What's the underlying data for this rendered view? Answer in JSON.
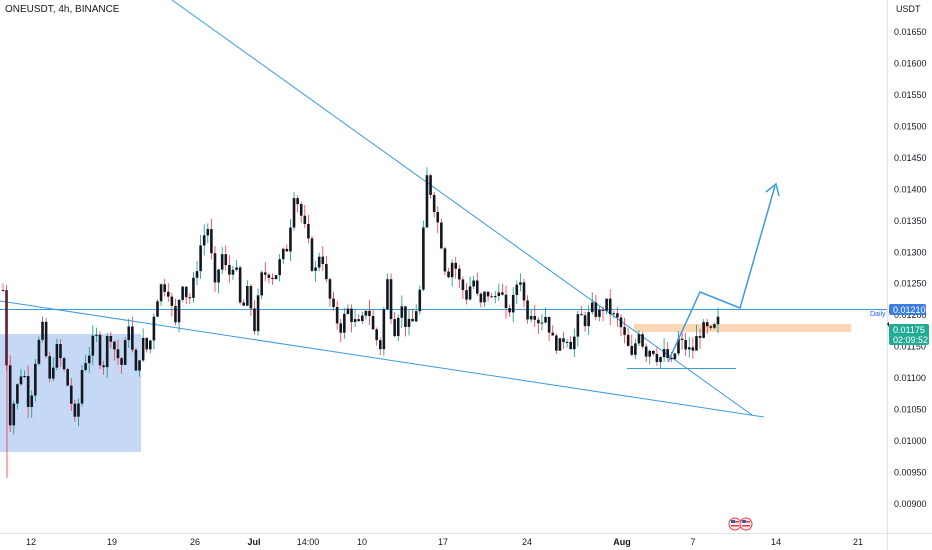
{
  "header": {
    "symbol_title": "ONEUSDT, 4h, BINANCE",
    "currency": "USDT"
  },
  "colors": {
    "up": "#089981",
    "down": "#f23645",
    "candle_body": "#131722",
    "line": "#3a9be0",
    "box": "#c5d8f5",
    "zone": "#fbd7b5",
    "price_tag": "#22ab94",
    "level_tag": "#3d7de0"
  },
  "chart_data": {
    "type": "candlestick",
    "y_axis": {
      "ticks": [
        "0.01650",
        "0.01600",
        "0.01550",
        "0.01500",
        "0.01450",
        "0.01400",
        "0.01350",
        "0.01300",
        "0.01250",
        "0.01200",
        "0.01150",
        "0.01100",
        "0.01050",
        "0.01000",
        "0.00950",
        "0.00900"
      ],
      "range": [
        0.00875,
        0.01695
      ]
    },
    "x_axis": {
      "ticks": [
        {
          "label": "12",
          "bold": false
        },
        {
          "label": "19",
          "bold": false
        },
        {
          "label": "26",
          "bold": false
        },
        {
          "label": "Jul",
          "bold": true
        },
        {
          "label": "14:00",
          "bold": false
        },
        {
          "label": "10",
          "bold": false
        },
        {
          "label": "17",
          "bold": false
        },
        {
          "label": "24",
          "bold": false
        },
        {
          "label": "Aug",
          "bold": true
        },
        {
          "label": "7",
          "bold": false
        },
        {
          "label": "14",
          "bold": false
        },
        {
          "label": "21",
          "bold": false
        }
      ]
    },
    "current_price": {
      "label": "0.01175",
      "countdown": "02:09:52",
      "value": 0.01175
    },
    "level": {
      "label": "0.01210",
      "value": 0.0121,
      "tag": "Daily"
    },
    "candles_close_path": [
      0.0124,
      0.0103,
      0.0108,
      0.0112,
      0.0105,
      0.0114,
      0.0118,
      0.0109,
      0.0115,
      0.0112,
      0.0108,
      0.0102,
      0.0112,
      0.0114,
      0.0117,
      0.0111,
      0.0118,
      0.0114,
      0.0112,
      0.0119,
      0.011,
      0.0116,
      0.0114,
      0.0122,
      0.0125,
      0.0124,
      0.0118,
      0.0126,
      0.0122,
      0.0126,
      0.0132,
      0.0134,
      0.0124,
      0.013,
      0.0126,
      0.0129,
      0.012,
      0.0124,
      0.0118,
      0.0126,
      0.0127,
      0.0126,
      0.0129,
      0.0131,
      0.014,
      0.0136,
      0.0132,
      0.0126,
      0.0131,
      0.0124,
      0.012,
      0.0118,
      0.0121,
      0.0119,
      0.0118,
      0.0122,
      0.0117,
      0.0115,
      0.0126,
      0.0117,
      0.0122,
      0.0118,
      0.0119,
      0.0124,
      0.0142,
      0.0138,
      0.0133,
      0.0126,
      0.0129,
      0.0125,
      0.0123,
      0.0126,
      0.0121,
      0.0124,
      0.0122,
      0.0125,
      0.012,
      0.0122,
      0.0127,
      0.012,
      0.0121,
      0.0119,
      0.012,
      0.0116,
      0.0115,
      0.0117,
      0.0115,
      0.012,
      0.0119,
      0.0121,
      0.012,
      0.0122,
      0.012,
      0.0119,
      0.0116,
      0.0113,
      0.0118,
      0.0114,
      0.0115,
      0.0113,
      0.0114,
      0.0112,
      0.0116,
      0.0115,
      0.0114,
      0.0117,
      0.0118,
      0.0117,
      0.0119
    ]
  }
}
